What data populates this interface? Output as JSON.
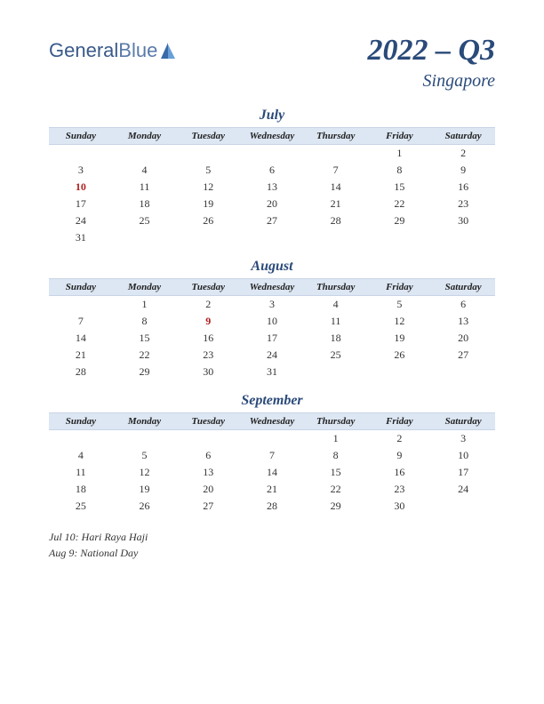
{
  "logo": {
    "text1": "General",
    "text2": "Blue"
  },
  "title": {
    "main": "2022 – Q3",
    "sub": "Singapore"
  },
  "colors": {
    "header_bg": "#dde7f3",
    "header_border": "#c8d4e6",
    "accent": "#2a4a7a",
    "holiday": "#b02020",
    "text": "#333333",
    "background": "#ffffff"
  },
  "day_headers": [
    "Sunday",
    "Monday",
    "Tuesday",
    "Wednesday",
    "Thursday",
    "Friday",
    "Saturday"
  ],
  "months": [
    {
      "name": "July",
      "weeks": [
        [
          "",
          "",
          "",
          "",
          "",
          "1",
          "2"
        ],
        [
          "3",
          "4",
          "5",
          "6",
          "7",
          "8",
          "9"
        ],
        [
          "10",
          "11",
          "12",
          "13",
          "14",
          "15",
          "16"
        ],
        [
          "17",
          "18",
          "19",
          "20",
          "21",
          "22",
          "23"
        ],
        [
          "24",
          "25",
          "26",
          "27",
          "28",
          "29",
          "30"
        ],
        [
          "31",
          "",
          "",
          "",
          "",
          "",
          ""
        ]
      ],
      "holidays": [
        "10"
      ]
    },
    {
      "name": "August",
      "weeks": [
        [
          "",
          "1",
          "2",
          "3",
          "4",
          "5",
          "6"
        ],
        [
          "7",
          "8",
          "9",
          "10",
          "11",
          "12",
          "13"
        ],
        [
          "14",
          "15",
          "16",
          "17",
          "18",
          "19",
          "20"
        ],
        [
          "21",
          "22",
          "23",
          "24",
          "25",
          "26",
          "27"
        ],
        [
          "28",
          "29",
          "30",
          "31",
          "",
          "",
          ""
        ]
      ],
      "holidays": [
        "9"
      ]
    },
    {
      "name": "September",
      "weeks": [
        [
          "",
          "",
          "",
          "",
          "1",
          "2",
          "3"
        ],
        [
          "4",
          "5",
          "6",
          "7",
          "8",
          "9",
          "10"
        ],
        [
          "11",
          "12",
          "13",
          "14",
          "15",
          "16",
          "17"
        ],
        [
          "18",
          "19",
          "20",
          "21",
          "22",
          "23",
          "24"
        ],
        [
          "25",
          "26",
          "27",
          "28",
          "29",
          "30",
          ""
        ]
      ],
      "holidays": []
    }
  ],
  "notes": [
    "Jul 10: Hari Raya Haji",
    "Aug 9: National Day"
  ]
}
